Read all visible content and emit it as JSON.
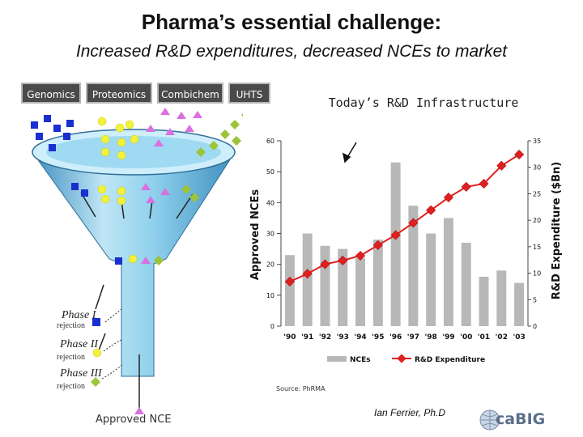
{
  "slide": {
    "title": "Pharma’s essential challenge:",
    "subtitle": "Increased R&D expenditures, decreased NCEs to market"
  },
  "technologies": [
    "Genomics",
    "Proteomics",
    "Combichem",
    "UHTS"
  ],
  "funnel": {
    "phases": [
      {
        "label": "Phase I",
        "sub": "rejection"
      },
      {
        "label": "Phase II",
        "sub": "rejection"
      },
      {
        "label": "Phase III",
        "sub": "rejection"
      }
    ],
    "output_label": "Approved NCE"
  },
  "colors": {
    "bar": "#b8b8b8",
    "line": "#e02020",
    "funnel": "#7cc6e6",
    "genomics": "#1a2fd0",
    "proteomics": "#f2f23a",
    "combichem": "#d870e0",
    "uhts": "#9cc43a"
  },
  "chart_data": {
    "type": "bar",
    "title": "Today’s R&D Infrastructure",
    "categories": [
      "'90",
      "'91",
      "'92",
      "'93",
      "'94",
      "'95",
      "'96",
      "'97",
      "'98",
      "'99",
      "'00",
      "'01",
      "'02",
      "'03"
    ],
    "series": [
      {
        "name": "NCEs",
        "type": "bar",
        "axis": "left",
        "values": [
          23,
          30,
          26,
          25,
          22,
          28,
          53,
          39,
          30,
          35,
          27,
          16,
          18,
          14
        ]
      },
      {
        "name": "R&D Expenditure",
        "type": "line",
        "axis": "right",
        "values": [
          8.4,
          9.9,
          11.7,
          12.4,
          13.3,
          15.3,
          17.2,
          19.5,
          21.9,
          24.3,
          26.3,
          26.9,
          30.3,
          32.4
        ]
      }
    ],
    "ylabel": "Approved NCEs",
    "y2label": "R&D Expenditure ($Bn)",
    "ylim": [
      0,
      60
    ],
    "y2lim": [
      0,
      35
    ],
    "yticks": [
      "0",
      "10",
      "20",
      "30",
      "40",
      "50",
      "60"
    ],
    "y2ticks": [
      "0",
      "5",
      "10",
      "15",
      "20",
      "25",
      "30",
      "35"
    ],
    "legend": "bottom",
    "source": "Source: PhRMA"
  },
  "footer": {
    "author": "Ian Ferrier, Ph.D",
    "logo": "caBIG"
  }
}
